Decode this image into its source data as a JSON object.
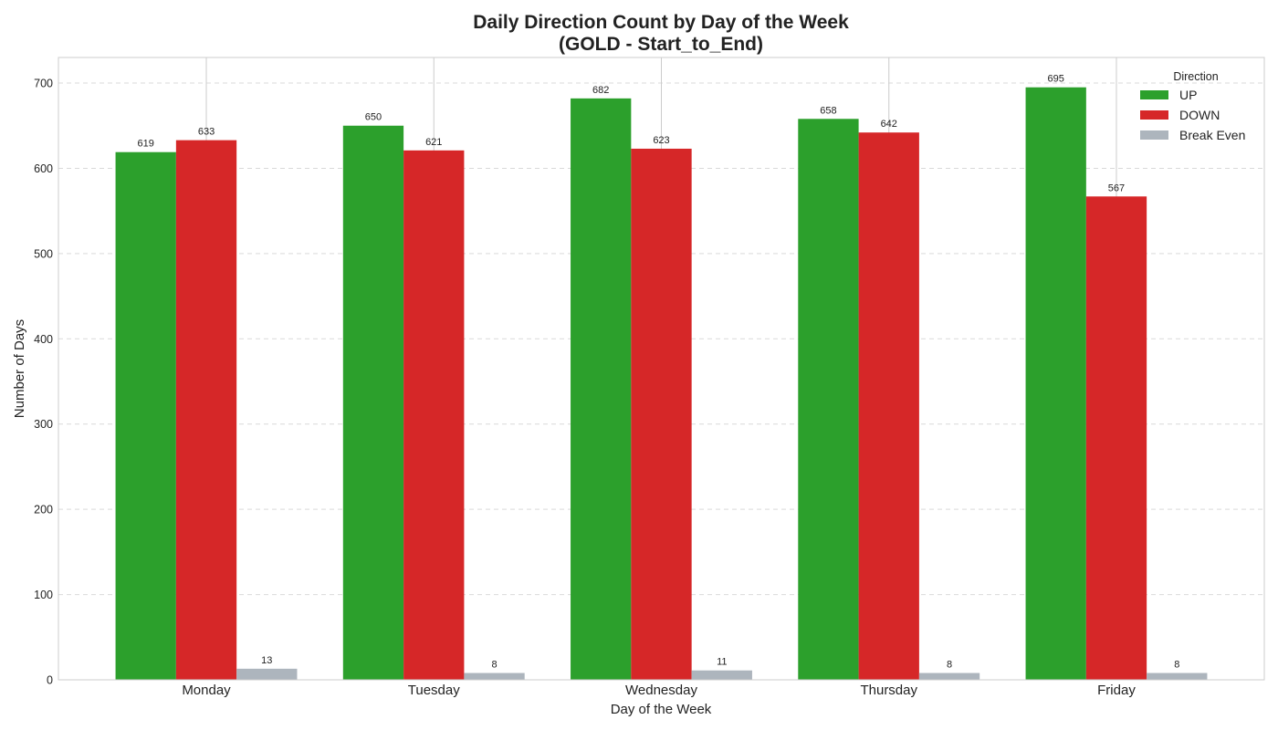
{
  "chart_data": {
    "type": "bar",
    "title_line1": "Daily Direction Count by Day of the Week",
    "title_line2": "(GOLD - Start_to_End)",
    "xlabel": "Day of the Week",
    "ylabel": "Number of Days",
    "categories": [
      "Monday",
      "Tuesday",
      "Wednesday",
      "Thursday",
      "Friday"
    ],
    "series": [
      {
        "name": "UP",
        "color": "#2ca02c",
        "values": [
          619,
          650,
          682,
          658,
          695
        ]
      },
      {
        "name": "DOWN",
        "color": "#d62728",
        "values": [
          633,
          621,
          623,
          642,
          567
        ]
      },
      {
        "name": "Break Even",
        "color": "#adb5bd",
        "values": [
          13,
          8,
          11,
          8,
          8
        ]
      }
    ],
    "ylim": [
      0,
      730
    ],
    "yticks": [
      0,
      100,
      200,
      300,
      400,
      500,
      600,
      700
    ],
    "legend": {
      "title": "Direction",
      "placement": "top-right"
    },
    "grid": {
      "y": "dashed",
      "x": "solid"
    }
  }
}
